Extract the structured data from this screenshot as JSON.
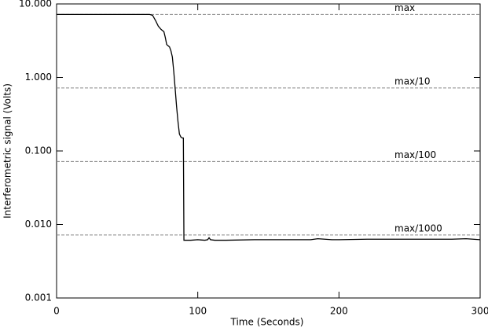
{
  "chart_data": {
    "type": "line",
    "log_y": true,
    "color": "#000000",
    "xlabel": "Time (Seconds)",
    "ylabel": "Interferometric signal (Volts)",
    "x": [
      0,
      10,
      20,
      30,
      40,
      50,
      60,
      66,
      68,
      70,
      72,
      74,
      76,
      77,
      78,
      79,
      80,
      81,
      82,
      83,
      84,
      85,
      86,
      87,
      88,
      89,
      89.8,
      90.2,
      92,
      95,
      100,
      105,
      107,
      108,
      109,
      112,
      120,
      140,
      160,
      180,
      185,
      190,
      195,
      200,
      220,
      240,
      260,
      280,
      290,
      300
    ],
    "values": [
      7.2,
      7.2,
      7.2,
      7.2,
      7.2,
      7.2,
      7.2,
      7.2,
      7.0,
      6.0,
      5.0,
      4.5,
      4.2,
      3.5,
      2.8,
      2.7,
      2.6,
      2.3,
      1.9,
      1.2,
      0.7,
      0.4,
      0.25,
      0.17,
      0.155,
      0.15,
      0.15,
      0.0061,
      0.0061,
      0.0061,
      0.0062,
      0.0061,
      0.0062,
      0.0066,
      0.0062,
      0.0061,
      0.0061,
      0.0062,
      0.0062,
      0.0062,
      0.0064,
      0.0063,
      0.0062,
      0.0062,
      0.0063,
      0.0063,
      0.0063,
      0.0063,
      0.0064,
      0.0062
    ],
    "xlim": [
      0,
      300
    ],
    "xticks": [
      0,
      100,
      200,
      300
    ],
    "ylim": [
      0.001,
      10
    ],
    "yticks": [
      {
        "value": 10,
        "label": "10.000"
      },
      {
        "value": 1,
        "label": "1.000"
      },
      {
        "value": 0.1,
        "label": "0.100"
      },
      {
        "value": 0.01,
        "label": "0.010"
      },
      {
        "value": 0.001,
        "label": "0.001"
      }
    ],
    "reference_lines": [
      {
        "label": "max",
        "value": 7.2
      },
      {
        "label": "max/10",
        "value": 0.72
      },
      {
        "label": "max/100",
        "value": 0.072
      },
      {
        "label": "max/1000",
        "value": 0.0072
      }
    ],
    "reference_color": "#888888"
  }
}
